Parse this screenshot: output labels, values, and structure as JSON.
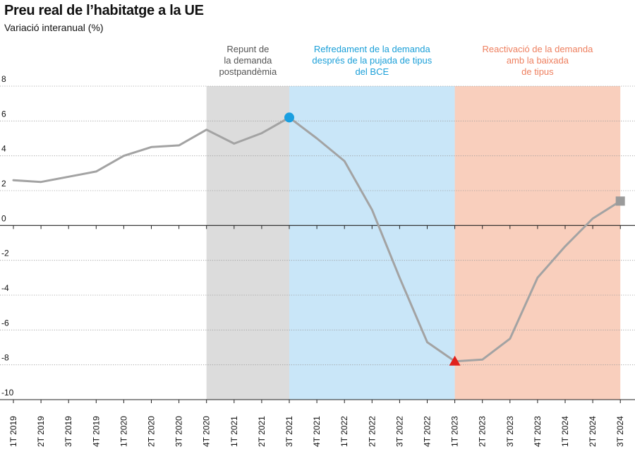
{
  "title": "Preu real de l’habitatge a la UE",
  "subtitle": "Variació interanual (%)",
  "colors": {
    "line": "#a3a3a3",
    "band_gray": "#dcdcdc",
    "band_blue": "#c9e6f8",
    "band_salmon": "#f9cfbd",
    "label_gray": "#555555",
    "label_blue": "#1a9fd8",
    "label_salmon": "#ee8060",
    "marker_peak": "#1a9fe0",
    "marker_trough": "#e0201c",
    "marker_last": "#9b9b9b"
  },
  "bands": [
    {
      "label": [
        "Repunt de",
        "la demanda",
        "postpandèmia"
      ],
      "from": "4T 2020",
      "to": "3T 2021",
      "color_key": "gray"
    },
    {
      "label": [
        "Refredament de la demanda",
        "després de la pujada de tipus",
        "del BCE"
      ],
      "from": "3T 2021",
      "to": "1T 2023",
      "color_key": "blue"
    },
    {
      "label": [
        "Reactivació de la demanda",
        "amb la baixada",
        "de tipus"
      ],
      "from": "1T 2023",
      "to": "3T 2024",
      "color_key": "salmon"
    }
  ],
  "chart_data": {
    "type": "line",
    "title": "Preu real de l’habitatge a la UE",
    "ylabel": "Variació interanual (%)",
    "xlabel": "",
    "ylim": [
      -10,
      8
    ],
    "yticks": [
      8,
      6,
      4,
      2,
      0,
      -2,
      -4,
      -6,
      -8,
      -10
    ],
    "categories": [
      "1T 2019",
      "2T 2019",
      "3T 2019",
      "4T 2019",
      "1T 2020",
      "2T 2020",
      "3T 2020",
      "4T 2020",
      "1T 2021",
      "2T 2021",
      "3T 2021",
      "4T 2021",
      "1T 2022",
      "2T 2022",
      "3T 2022",
      "4T 2022",
      "1T 2023",
      "2T 2023",
      "3T 2023",
      "4T 2023",
      "1T 2024",
      "2T 2024",
      "3T 2024"
    ],
    "series": [
      {
        "name": "Preu real de l’habitatge",
        "values": [
          2.6,
          2.5,
          2.8,
          3.1,
          4.0,
          4.5,
          4.6,
          5.5,
          4.7,
          5.3,
          6.2,
          5.0,
          3.7,
          0.9,
          -3.0,
          -6.7,
          -7.8,
          -7.7,
          -6.5,
          -3.0,
          -1.2,
          0.4,
          1.4
        ]
      }
    ],
    "markers": [
      {
        "category": "3T 2021",
        "shape": "circle",
        "color_key": "marker_peak"
      },
      {
        "category": "1T 2023",
        "shape": "triangle",
        "color_key": "marker_trough"
      },
      {
        "category": "3T 2024",
        "shape": "square",
        "color_key": "marker_last"
      }
    ],
    "grid": true,
    "legend": "none"
  }
}
